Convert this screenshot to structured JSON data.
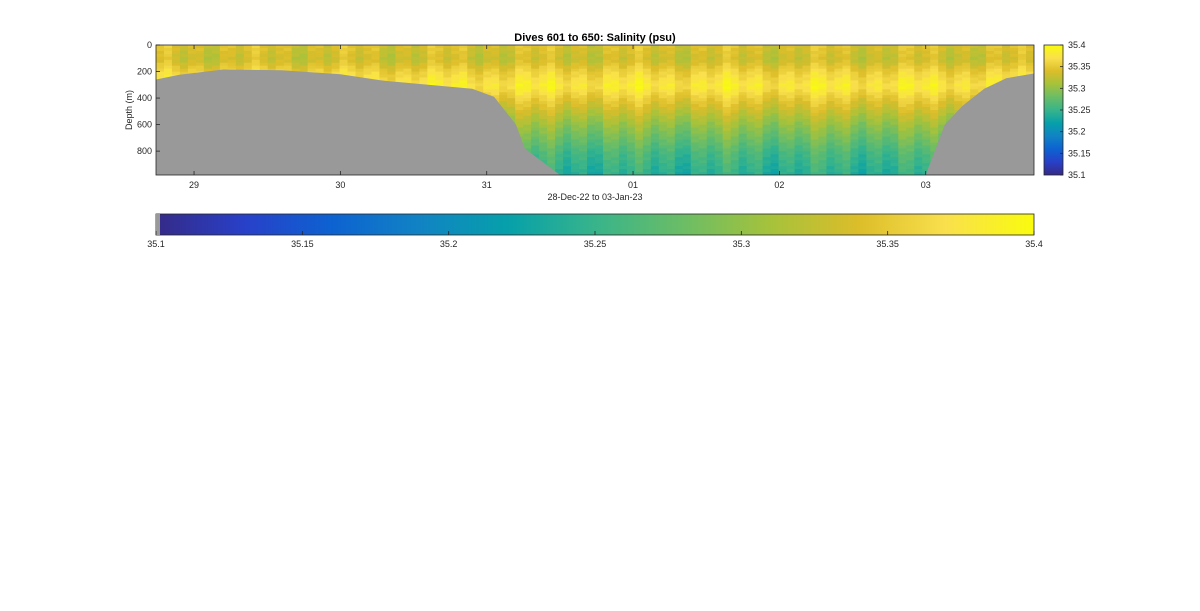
{
  "chart_data": {
    "type": "heatmap",
    "title": "Dives 601 to 650: Salinity (psu)",
    "xlabel": "28-Dec-22 to 03-Jan-23",
    "ylabel": "Depth (m)",
    "x_ticks": [
      "29",
      "30",
      "31",
      "01",
      "02",
      "03"
    ],
    "x_tick_times_days": [
      1,
      2,
      3,
      4,
      5,
      6
    ],
    "xlim_days": [
      0.74,
      6.74
    ],
    "y_ticks": [
      "0",
      "200",
      "400",
      "600",
      "800"
    ],
    "y_tick_values": [
      0,
      200,
      400,
      600,
      800
    ],
    "ylim": [
      0,
      980
    ],
    "y_reversed": true,
    "clim": [
      35.1,
      35.4
    ],
    "colorbar_ticks": [
      "35.1",
      "35.15",
      "35.2",
      "35.25",
      "35.3",
      "35.35",
      "35.4"
    ],
    "colorbar_tick_values": [
      35.1,
      35.15,
      35.2,
      35.25,
      35.3,
      35.35,
      35.4
    ],
    "colormap": [
      "#352a87",
      "#2840c8",
      "#0d62d1",
      "#1183c4",
      "#06a0aa",
      "#38b48b",
      "#6bbd66",
      "#a6c23b",
      "#dcbd2a",
      "#f9e04c",
      "#f9fb0e"
    ],
    "mask_color": "#999999",
    "bottom_depth_profile": {
      "time_days": [
        0.74,
        0.9,
        1.2,
        1.6,
        2.0,
        2.3,
        2.6,
        2.9,
        3.05,
        3.2,
        3.26,
        3.5,
        4.0,
        5.0,
        6.0,
        6.13,
        6.25,
        6.4,
        6.55,
        6.74
      ],
      "depth_m": [
        260,
        225,
        185,
        190,
        220,
        270,
        300,
        330,
        390,
        600,
        780,
        980,
        980,
        980,
        980,
        600,
        460,
        330,
        250,
        215
      ]
    },
    "salinity_profile_summary": {
      "depth_m": [
        0,
        100,
        200,
        300,
        400,
        600,
        800,
        980
      ],
      "salinity_psu": [
        35.34,
        35.33,
        35.36,
        35.38,
        35.35,
        35.3,
        35.26,
        35.24
      ]
    }
  }
}
